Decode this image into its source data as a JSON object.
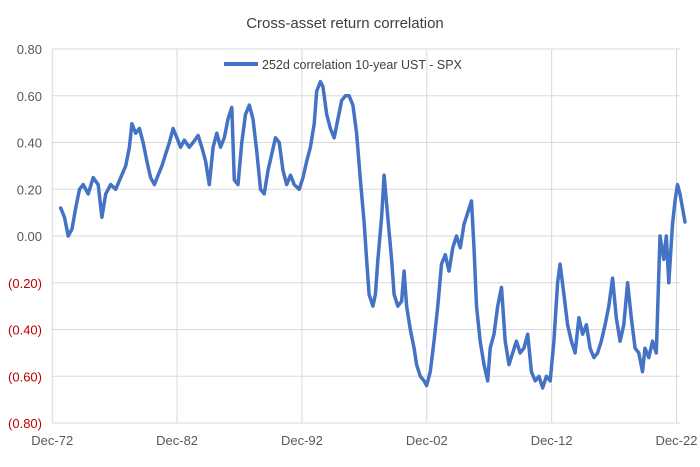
{
  "chart_data": {
    "type": "line",
    "title": "Cross-asset return correlation",
    "xlabel": "",
    "ylabel": "",
    "xlim": [
      1972.9,
      2023.2
    ],
    "ylim": [
      -0.8,
      0.8
    ],
    "x_ticks": [
      {
        "value": 1972.92,
        "label": "Dec-72"
      },
      {
        "value": 1982.92,
        "label": "Dec-82"
      },
      {
        "value": 1992.92,
        "label": "Dec-92"
      },
      {
        "value": 2002.92,
        "label": "Dec-02"
      },
      {
        "value": 2012.92,
        "label": "Dec-12"
      },
      {
        "value": 2022.92,
        "label": "Dec-22"
      }
    ],
    "y_ticks": [
      {
        "value": 0.8,
        "label": "0.80",
        "negative": false
      },
      {
        "value": 0.6,
        "label": "0.60",
        "negative": false
      },
      {
        "value": 0.4,
        "label": "0.40",
        "negative": false
      },
      {
        "value": 0.2,
        "label": "0.20",
        "negative": false
      },
      {
        "value": 0.0,
        "label": "0.00",
        "negative": false
      },
      {
        "value": -0.2,
        "label": "(0.20)",
        "negative": true
      },
      {
        "value": -0.4,
        "label": "(0.40)",
        "negative": true
      },
      {
        "value": -0.6,
        "label": "(0.60)",
        "negative": true
      },
      {
        "value": -0.8,
        "label": "(0.80)",
        "negative": true
      }
    ],
    "grid": true,
    "legend_position": "top-center",
    "colors": {
      "series": "#4472C4",
      "grid": "#d9d9d9",
      "tick_text": "#595959",
      "negative_tick_text": "#c00000"
    },
    "series": [
      {
        "name": "252d correlation 10-year UST - SPX",
        "points": [
          [
            1973.6,
            0.12
          ],
          [
            1973.9,
            0.08
          ],
          [
            1974.2,
            0.0
          ],
          [
            1974.5,
            0.03
          ],
          [
            1974.8,
            0.12
          ],
          [
            1975.1,
            0.2
          ],
          [
            1975.4,
            0.22
          ],
          [
            1975.8,
            0.18
          ],
          [
            1976.2,
            0.25
          ],
          [
            1976.6,
            0.22
          ],
          [
            1976.9,
            0.08
          ],
          [
            1977.2,
            0.18
          ],
          [
            1977.6,
            0.22
          ],
          [
            1978.0,
            0.2
          ],
          [
            1978.4,
            0.25
          ],
          [
            1978.8,
            0.3
          ],
          [
            1979.1,
            0.38
          ],
          [
            1979.3,
            0.48
          ],
          [
            1979.6,
            0.44
          ],
          [
            1979.9,
            0.46
          ],
          [
            1980.2,
            0.4
          ],
          [
            1980.5,
            0.32
          ],
          [
            1980.8,
            0.25
          ],
          [
            1981.1,
            0.22
          ],
          [
            1981.4,
            0.26
          ],
          [
            1981.7,
            0.3
          ],
          [
            1982.0,
            0.35
          ],
          [
            1982.3,
            0.4
          ],
          [
            1982.6,
            0.46
          ],
          [
            1982.9,
            0.42
          ],
          [
            1983.2,
            0.38
          ],
          [
            1983.5,
            0.41
          ],
          [
            1983.9,
            0.38
          ],
          [
            1984.2,
            0.4
          ],
          [
            1984.6,
            0.43
          ],
          [
            1984.9,
            0.38
          ],
          [
            1985.2,
            0.32
          ],
          [
            1985.5,
            0.22
          ],
          [
            1985.8,
            0.38
          ],
          [
            1986.1,
            0.44
          ],
          [
            1986.4,
            0.38
          ],
          [
            1986.7,
            0.42
          ],
          [
            1987.0,
            0.5
          ],
          [
            1987.3,
            0.55
          ],
          [
            1987.5,
            0.24
          ],
          [
            1987.8,
            0.22
          ],
          [
            1988.1,
            0.4
          ],
          [
            1988.4,
            0.52
          ],
          [
            1988.7,
            0.56
          ],
          [
            1989.0,
            0.5
          ],
          [
            1989.3,
            0.36
          ],
          [
            1989.6,
            0.2
          ],
          [
            1989.9,
            0.18
          ],
          [
            1990.2,
            0.28
          ],
          [
            1990.5,
            0.35
          ],
          [
            1990.8,
            0.42
          ],
          [
            1991.1,
            0.4
          ],
          [
            1991.4,
            0.28
          ],
          [
            1991.7,
            0.22
          ],
          [
            1992.0,
            0.26
          ],
          [
            1992.3,
            0.22
          ],
          [
            1992.7,
            0.2
          ],
          [
            1993.0,
            0.25
          ],
          [
            1993.3,
            0.32
          ],
          [
            1993.6,
            0.38
          ],
          [
            1993.9,
            0.48
          ],
          [
            1994.1,
            0.62
          ],
          [
            1994.4,
            0.66
          ],
          [
            1994.6,
            0.64
          ],
          [
            1994.9,
            0.52
          ],
          [
            1995.2,
            0.46
          ],
          [
            1995.5,
            0.42
          ],
          [
            1995.8,
            0.5
          ],
          [
            1996.1,
            0.58
          ],
          [
            1996.4,
            0.6
          ],
          [
            1996.7,
            0.6
          ],
          [
            1997.0,
            0.56
          ],
          [
            1997.3,
            0.44
          ],
          [
            1997.6,
            0.24
          ],
          [
            1997.9,
            0.06
          ],
          [
            1998.1,
            -0.1
          ],
          [
            1998.3,
            -0.25
          ],
          [
            1998.6,
            -0.3
          ],
          [
            1998.8,
            -0.25
          ],
          [
            1999.0,
            -0.1
          ],
          [
            1999.3,
            0.08
          ],
          [
            1999.5,
            0.26
          ],
          [
            1999.8,
            0.08
          ],
          [
            2000.1,
            -0.1
          ],
          [
            2000.3,
            -0.25
          ],
          [
            2000.6,
            -0.3
          ],
          [
            2000.9,
            -0.28
          ],
          [
            2001.1,
            -0.15
          ],
          [
            2001.3,
            -0.3
          ],
          [
            2001.6,
            -0.4
          ],
          [
            2001.9,
            -0.48
          ],
          [
            2002.1,
            -0.55
          ],
          [
            2002.4,
            -0.6
          ],
          [
            2002.7,
            -0.62
          ],
          [
            2002.9,
            -0.64
          ],
          [
            2003.2,
            -0.58
          ],
          [
            2003.5,
            -0.45
          ],
          [
            2003.8,
            -0.3
          ],
          [
            2004.1,
            -0.12
          ],
          [
            2004.4,
            -0.08
          ],
          [
            2004.7,
            -0.15
          ],
          [
            2005.0,
            -0.05
          ],
          [
            2005.3,
            0.0
          ],
          [
            2005.6,
            -0.05
          ],
          [
            2005.9,
            0.05
          ],
          [
            2006.2,
            0.1
          ],
          [
            2006.5,
            0.15
          ],
          [
            2006.7,
            -0.05
          ],
          [
            2006.9,
            -0.3
          ],
          [
            2007.2,
            -0.45
          ],
          [
            2007.5,
            -0.55
          ],
          [
            2007.8,
            -0.62
          ],
          [
            2008.0,
            -0.48
          ],
          [
            2008.3,
            -0.42
          ],
          [
            2008.6,
            -0.3
          ],
          [
            2008.9,
            -0.22
          ],
          [
            2009.2,
            -0.45
          ],
          [
            2009.5,
            -0.55
          ],
          [
            2009.8,
            -0.5
          ],
          [
            2010.1,
            -0.45
          ],
          [
            2010.4,
            -0.5
          ],
          [
            2010.7,
            -0.48
          ],
          [
            2011.0,
            -0.42
          ],
          [
            2011.3,
            -0.58
          ],
          [
            2011.6,
            -0.62
          ],
          [
            2011.9,
            -0.6
          ],
          [
            2012.2,
            -0.65
          ],
          [
            2012.5,
            -0.6
          ],
          [
            2012.8,
            -0.62
          ],
          [
            2013.1,
            -0.45
          ],
          [
            2013.4,
            -0.2
          ],
          [
            2013.6,
            -0.12
          ],
          [
            2013.9,
            -0.25
          ],
          [
            2014.2,
            -0.38
          ],
          [
            2014.5,
            -0.45
          ],
          [
            2014.8,
            -0.5
          ],
          [
            2015.1,
            -0.35
          ],
          [
            2015.4,
            -0.42
          ],
          [
            2015.7,
            -0.38
          ],
          [
            2016.0,
            -0.48
          ],
          [
            2016.3,
            -0.52
          ],
          [
            2016.6,
            -0.5
          ],
          [
            2016.9,
            -0.45
          ],
          [
            2017.2,
            -0.38
          ],
          [
            2017.5,
            -0.3
          ],
          [
            2017.8,
            -0.18
          ],
          [
            2018.1,
            -0.35
          ],
          [
            2018.4,
            -0.45
          ],
          [
            2018.7,
            -0.38
          ],
          [
            2019.0,
            -0.2
          ],
          [
            2019.3,
            -0.35
          ],
          [
            2019.6,
            -0.48
          ],
          [
            2019.9,
            -0.5
          ],
          [
            2020.2,
            -0.58
          ],
          [
            2020.4,
            -0.48
          ],
          [
            2020.7,
            -0.52
          ],
          [
            2021.0,
            -0.45
          ],
          [
            2021.3,
            -0.5
          ],
          [
            2021.6,
            0.0
          ],
          [
            2021.9,
            -0.1
          ],
          [
            2022.1,
            0.0
          ],
          [
            2022.3,
            -0.2
          ],
          [
            2022.6,
            0.05
          ],
          [
            2022.8,
            0.15
          ],
          [
            2023.0,
            0.22
          ],
          [
            2023.2,
            0.18
          ],
          [
            2023.4,
            0.12
          ],
          [
            2023.6,
            0.06
          ]
        ]
      }
    ]
  }
}
